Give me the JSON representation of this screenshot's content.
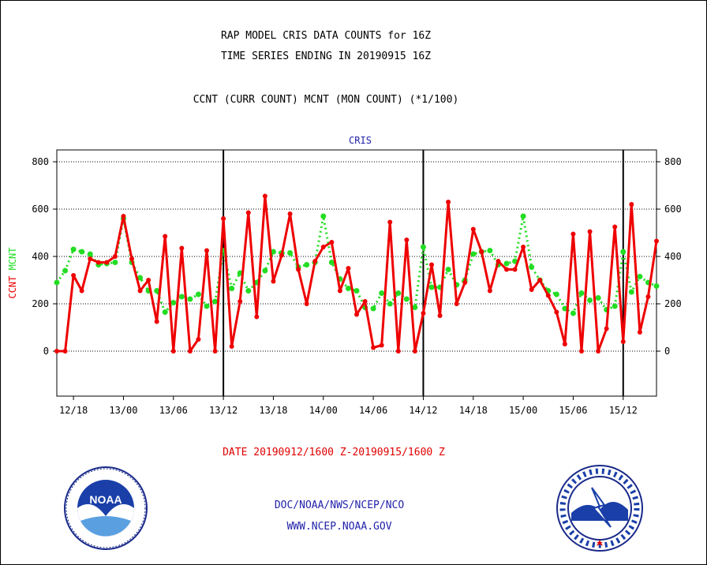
{
  "header": {
    "title": "RAP MODEL CRIS DATA COUNTS for 16Z",
    "subtitle": "TIME SERIES ENDING IN 20190915 16Z",
    "legend_text": "CCNT (CURR COUNT) MCNT (MON COUNT) (*1/100)"
  },
  "chart_data": {
    "type": "line",
    "panel_title": "CRIS",
    "ylabel_left_a": "CCNT",
    "ylabel_left_b": "MCNT",
    "ylim": [
      -190,
      850
    ],
    "yticks": [
      0,
      200,
      400,
      600,
      800
    ],
    "grid": true,
    "x_tick_labels": [
      "12/18",
      "13/00",
      "13/06",
      "13/12",
      "13/18",
      "14/00",
      "14/06",
      "14/12",
      "14/18",
      "15/00",
      "15/06",
      "15/12"
    ],
    "x_tick_hours": [
      2,
      8,
      14,
      20,
      26,
      32,
      38,
      44,
      50,
      56,
      62,
      68
    ],
    "day_boundaries": [
      20,
      44,
      68
    ],
    "series": [
      {
        "key": "CCNT",
        "color": "#ee0000",
        "values": [
          0,
          0,
          320,
          255,
          390,
          375,
          375,
          400,
          570,
          390,
          255,
          300,
          125,
          485,
          0,
          435,
          0,
          50,
          425,
          0,
          560,
          20,
          210,
          585,
          145,
          655,
          295,
          405,
          580,
          345,
          200,
          380,
          440,
          460,
          255,
          350,
          155,
          210,
          15,
          25,
          545,
          0,
          470,
          0,
          160,
          365,
          150,
          630,
          200,
          290,
          515,
          420,
          255,
          380,
          345,
          345,
          440,
          260,
          300,
          235,
          165,
          30,
          495,
          0,
          505,
          0,
          95,
          525,
          40,
          620,
          80,
          230,
          465
        ]
      },
      {
        "key": "MCNT",
        "color": "#22dd22",
        "values": [
          290,
          340,
          430,
          420,
          410,
          365,
          370,
          375,
          560,
          375,
          310,
          255,
          255,
          165,
          205,
          230,
          220,
          240,
          190,
          210,
          425,
          265,
          330,
          255,
          290,
          340,
          420,
          415,
          415,
          355,
          365,
          375,
          570,
          375,
          305,
          265,
          255,
          185,
          180,
          245,
          200,
          245,
          220,
          185,
          440,
          270,
          270,
          345,
          280,
          300,
          410,
          420,
          425,
          365,
          370,
          380,
          570,
          355,
          300,
          255,
          240,
          180,
          160,
          245,
          215,
          225,
          175,
          190,
          420,
          250,
          315,
          290,
          275
        ]
      }
    ]
  },
  "footer": {
    "date_range": "DATE 20190912/1600 Z-20190915/1600 Z",
    "credit": "DOC/NOAA/NWS/NCEP/NCO",
    "website": "WWW.NCEP.NOAA.GOV"
  },
  "logos": {
    "left": "noaa-logo",
    "right": "national-weather-service-logo"
  }
}
